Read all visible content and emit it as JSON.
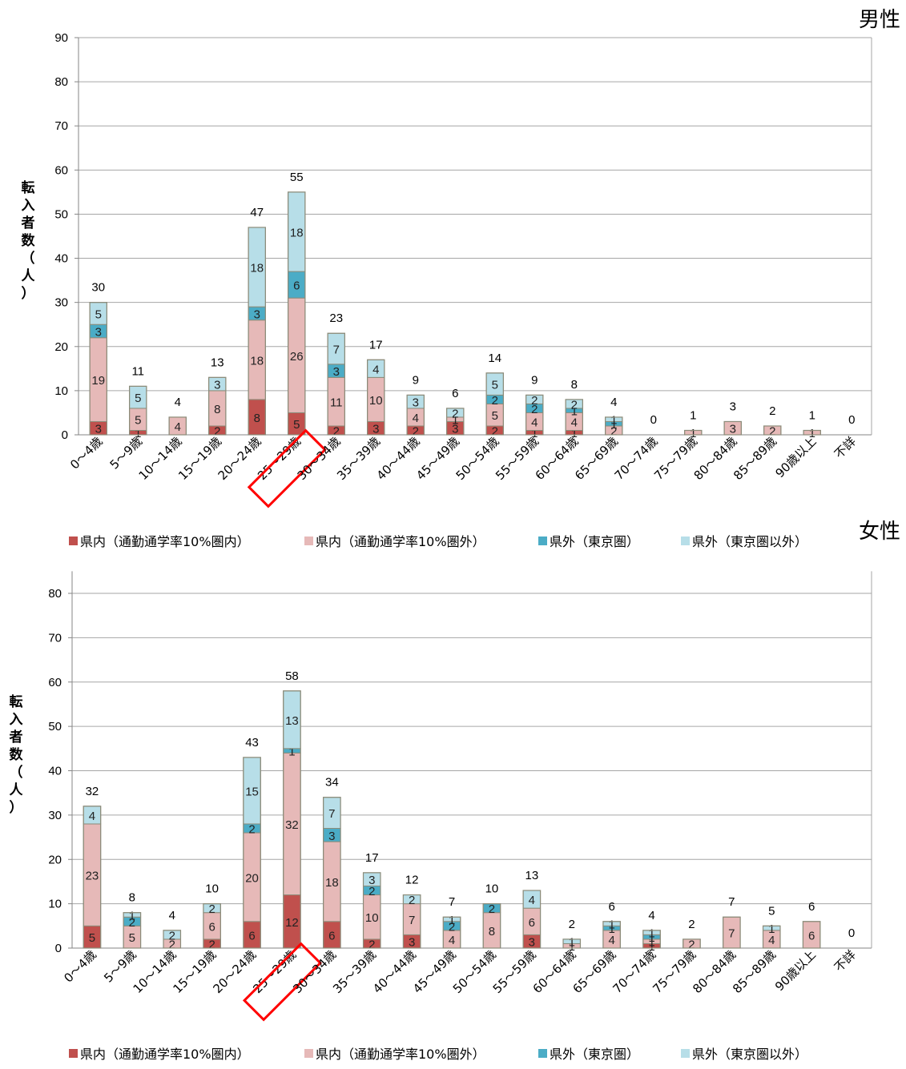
{
  "chart_data": [
    {
      "type": "bar",
      "stacked": true,
      "title": "男性",
      "ylabel": "転入者数（人）",
      "ylim": [
        0,
        90
      ],
      "yticks": [
        0,
        10,
        20,
        30,
        40,
        50,
        60,
        70,
        80,
        90
      ],
      "highlight_category": "25〜29歳",
      "legend_position": "bottom",
      "categories": [
        "0〜4歳",
        "5〜9歳",
        "10〜14歳",
        "15〜19歳",
        "20〜24歳",
        "25〜29歳",
        "30〜34歳",
        "35〜39歳",
        "40〜44歳",
        "45〜49歳",
        "50〜54歳",
        "55〜59歳",
        "60〜64歳",
        "65〜69歳",
        "70〜74歳",
        "75〜79歳",
        "80〜84歳",
        "85〜89歳",
        "90歳以上",
        "不詳"
      ],
      "series": [
        {
          "name": "県内（通勤通学率10%圏内）",
          "color": "#c0504d",
          "values": [
            3,
            1,
            0,
            2,
            8,
            5,
            2,
            3,
            2,
            3,
            2,
            1,
            1,
            0,
            0,
            0,
            0,
            0,
            0,
            0
          ]
        },
        {
          "name": "県内（通勤通学率10%圏外）",
          "color": "#e6b9b8",
          "values": [
            19,
            5,
            4,
            8,
            18,
            26,
            11,
            10,
            4,
            1,
            5,
            4,
            4,
            2,
            0,
            1,
            3,
            2,
            1,
            0
          ]
        },
        {
          "name": "県外（東京圏）",
          "color": "#4bacc6",
          "values": [
            3,
            0,
            0,
            0,
            3,
            6,
            3,
            0,
            0,
            0,
            2,
            2,
            1,
            1,
            0,
            0,
            0,
            0,
            0,
            0
          ]
        },
        {
          "name": "県外（東京圏以外）",
          "color": "#b7dee8",
          "values": [
            5,
            5,
            0,
            3,
            18,
            18,
            7,
            4,
            3,
            2,
            5,
            2,
            2,
            1,
            0,
            0,
            0,
            0,
            0,
            0
          ]
        }
      ],
      "totals": [
        30,
        11,
        4,
        13,
        47,
        55,
        23,
        17,
        9,
        6,
        14,
        9,
        8,
        4,
        0,
        1,
        3,
        2,
        1,
        0
      ]
    },
    {
      "type": "bar",
      "stacked": true,
      "title": "女性",
      "ylabel": "転入者数（人）",
      "ylim": [
        0,
        85
      ],
      "yticks": [
        0,
        10,
        20,
        30,
        40,
        50,
        60,
        70,
        80
      ],
      "highlight_category": "25〜29歳",
      "legend_position": "bottom",
      "categories": [
        "0〜4歳",
        "5〜9歳",
        "10〜14歳",
        "15〜19歳",
        "20〜24歳",
        "25〜29歳",
        "30〜34歳",
        "35〜39歳",
        "40〜44歳",
        "45〜49歳",
        "50〜54歳",
        "55〜59歳",
        "60〜64歳",
        "65〜69歳",
        "70〜74歳",
        "75〜79歳",
        "80〜84歳",
        "85〜89歳",
        "90歳以上",
        "不詳"
      ],
      "series": [
        {
          "name": "県内（通勤通学率10%圏内）",
          "color": "#c0504d",
          "values": [
            5,
            0,
            0,
            2,
            6,
            12,
            6,
            2,
            3,
            0,
            0,
            3,
            0,
            0,
            1,
            0,
            0,
            0,
            0,
            0
          ]
        },
        {
          "name": "県内（通勤通学率10%圏外）",
          "color": "#e6b9b8",
          "values": [
            23,
            5,
            2,
            6,
            20,
            32,
            18,
            10,
            7,
            4,
            8,
            6,
            1,
            4,
            1,
            2,
            7,
            4,
            6,
            0
          ]
        },
        {
          "name": "県外（東京圏）",
          "color": "#4bacc6",
          "values": [
            0,
            2,
            0,
            0,
            2,
            1,
            3,
            2,
            0,
            2,
            2,
            0,
            0,
            1,
            1,
            0,
            0,
            0,
            0,
            0
          ]
        },
        {
          "name": "県外（東京圏以外）",
          "color": "#b7dee8",
          "values": [
            4,
            1,
            2,
            2,
            15,
            13,
            7,
            3,
            2,
            1,
            0,
            4,
            1,
            1,
            1,
            0,
            0,
            1,
            0,
            0
          ]
        }
      ],
      "totals": [
        32,
        8,
        4,
        10,
        43,
        58,
        34,
        17,
        12,
        7,
        10,
        13,
        2,
        6,
        4,
        2,
        7,
        5,
        6,
        0
      ]
    }
  ]
}
